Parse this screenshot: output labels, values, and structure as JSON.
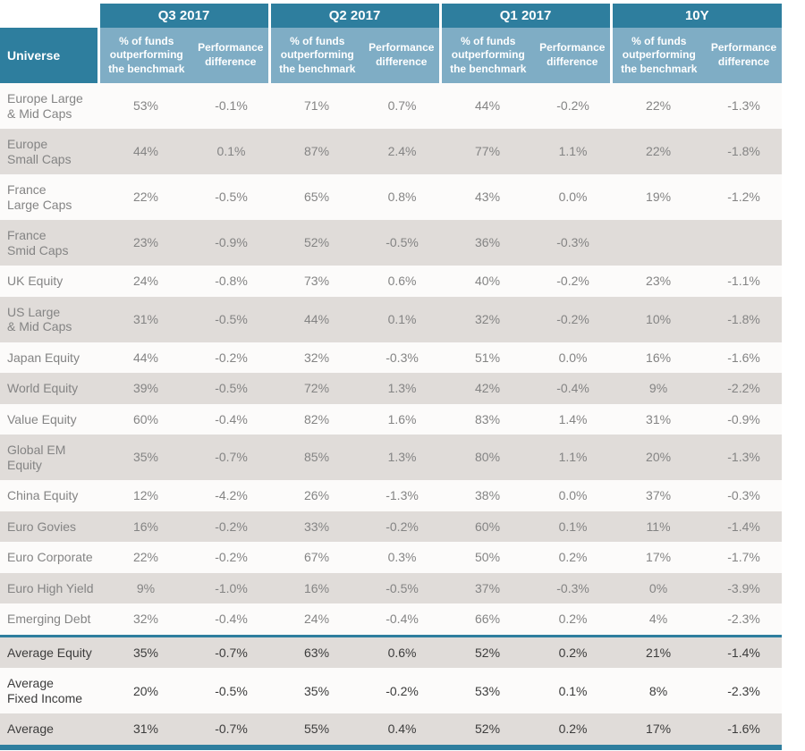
{
  "colors": {
    "header_teal": "#2E7E9E",
    "subheader_teal": "#7FADC5",
    "row_stripe_grey": "#E0DCD9",
    "row_plain": "#FCFBFA",
    "text_muted": "#848484",
    "text_aggregate": "#3C3C3C",
    "header_text": "#FFFFFF"
  },
  "chart_data": {
    "type": "table",
    "universe_header": "Universe",
    "period_groups": [
      "Q3 2017",
      "Q2 2017",
      "Q1 2017",
      "10Y"
    ],
    "metric_headers": [
      "% of funds outperforming the benchmark",
      "Performance difference"
    ],
    "rows": [
      {
        "universe": "Europe Large\n& Mid Caps",
        "aggregate": false,
        "separator": false,
        "values": [
          "53%",
          "-0.1%",
          "71%",
          "0.7%",
          "44%",
          "-0.2%",
          "22%",
          "-1.3%"
        ]
      },
      {
        "universe": "Europe\nSmall Caps",
        "aggregate": false,
        "separator": false,
        "values": [
          "44%",
          "0.1%",
          "87%",
          "2.4%",
          "77%",
          "1.1%",
          "22%",
          "-1.8%"
        ]
      },
      {
        "universe": "France\nLarge Caps",
        "aggregate": false,
        "separator": false,
        "values": [
          "22%",
          "-0.5%",
          "65%",
          "0.8%",
          "43%",
          "0.0%",
          "19%",
          "-1.2%"
        ]
      },
      {
        "universe": "France\nSmid Caps",
        "aggregate": false,
        "separator": false,
        "values": [
          "23%",
          "-0.9%",
          "52%",
          "-0.5%",
          "36%",
          "-0.3%",
          "",
          ""
        ]
      },
      {
        "universe": "UK Equity",
        "aggregate": false,
        "separator": false,
        "values": [
          "24%",
          "-0.8%",
          "73%",
          "0.6%",
          "40%",
          "-0.2%",
          "23%",
          "-1.1%"
        ]
      },
      {
        "universe": "US Large\n& Mid Caps",
        "aggregate": false,
        "separator": false,
        "values": [
          "31%",
          "-0.5%",
          "44%",
          "0.1%",
          "32%",
          "-0.2%",
          "10%",
          "-1.8%"
        ]
      },
      {
        "universe": "Japan Equity",
        "aggregate": false,
        "separator": false,
        "values": [
          "44%",
          "-0.2%",
          "32%",
          "-0.3%",
          "51%",
          "0.0%",
          "16%",
          "-1.6%"
        ]
      },
      {
        "universe": "World Equity",
        "aggregate": false,
        "separator": false,
        "values": [
          "39%",
          "-0.5%",
          "72%",
          "1.3%",
          "42%",
          "-0.4%",
          "9%",
          "-2.2%"
        ]
      },
      {
        "universe": "Value Equity",
        "aggregate": false,
        "separator": false,
        "values": [
          "60%",
          "-0.4%",
          "82%",
          "1.6%",
          "83%",
          "1.4%",
          "31%",
          "-0.9%"
        ]
      },
      {
        "universe": "Global EM\nEquity",
        "aggregate": false,
        "separator": false,
        "values": [
          "35%",
          "-0.7%",
          "85%",
          "1.3%",
          "80%",
          "1.1%",
          "20%",
          "-1.3%"
        ]
      },
      {
        "universe": "China Equity",
        "aggregate": false,
        "separator": false,
        "values": [
          "12%",
          "-4.2%",
          "26%",
          "-1.3%",
          "38%",
          "0.0%",
          "37%",
          "-0.3%"
        ]
      },
      {
        "universe": "Euro Govies",
        "aggregate": false,
        "separator": false,
        "values": [
          "16%",
          "-0.2%",
          "33%",
          "-0.2%",
          "60%",
          "0.1%",
          "11%",
          "-1.4%"
        ]
      },
      {
        "universe": "Euro Corporate",
        "aggregate": false,
        "separator": false,
        "values": [
          "22%",
          "-0.2%",
          "67%",
          "0.3%",
          "50%",
          "0.2%",
          "17%",
          "-1.7%"
        ]
      },
      {
        "universe": "Euro High Yield",
        "aggregate": false,
        "separator": false,
        "values": [
          "9%",
          "-1.0%",
          "16%",
          "-0.5%",
          "37%",
          "-0.3%",
          "0%",
          "-3.9%"
        ]
      },
      {
        "universe": "Emerging Debt",
        "aggregate": false,
        "separator": false,
        "values": [
          "32%",
          "-0.4%",
          "24%",
          "-0.4%",
          "66%",
          "0.2%",
          "4%",
          "-2.3%"
        ]
      },
      {
        "universe": "Average Equity",
        "aggregate": true,
        "separator": true,
        "values": [
          "35%",
          "-0.7%",
          "63%",
          "0.6%",
          "52%",
          "0.2%",
          "21%",
          "-1.4%"
        ]
      },
      {
        "universe": "Average\nFixed Income",
        "aggregate": true,
        "separator": false,
        "values": [
          "20%",
          "-0.5%",
          "35%",
          "-0.2%",
          "53%",
          "0.1%",
          "8%",
          "-2.3%"
        ]
      },
      {
        "universe": "Average",
        "aggregate": true,
        "separator": false,
        "values": [
          "31%",
          "-0.7%",
          "55%",
          "0.4%",
          "52%",
          "0.2%",
          "17%",
          "-1.6%"
        ]
      }
    ]
  }
}
